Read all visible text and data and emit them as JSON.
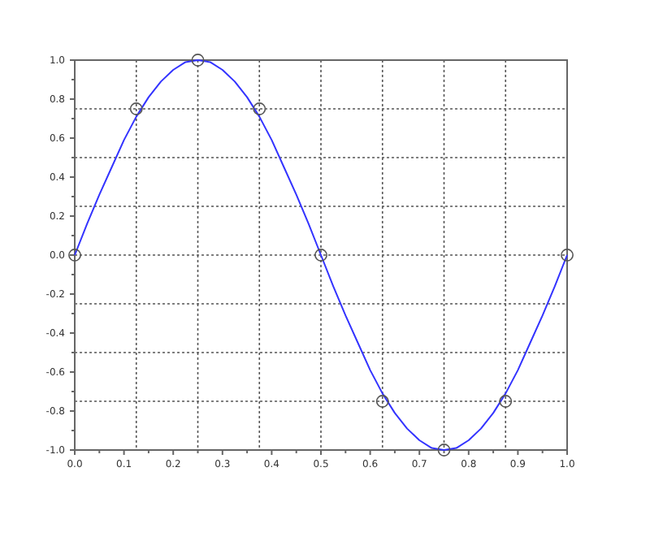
{
  "chart_data": {
    "type": "line",
    "xlim": [
      0,
      1
    ],
    "ylim": [
      -1,
      1
    ],
    "xticks": [
      {
        "value": 0,
        "label": "0.0"
      },
      {
        "value": 0.05,
        "label": null
      },
      0.1,
      {
        "value": 0.15,
        "label": null
      },
      0.2,
      {
        "value": 0.25,
        "label": null
      },
      0.3,
      {
        "value": 0.35,
        "label": null
      },
      0.4,
      {
        "value": 0.45,
        "label": null
      },
      0.5,
      {
        "value": 0.55,
        "label": null
      },
      0.6,
      {
        "value": 0.65,
        "label": null
      },
      0.7,
      {
        "value": 0.75,
        "label": null
      },
      0.8,
      {
        "value": 0.85,
        "label": null
      },
      0.9,
      {
        "value": 0.95,
        "label": null
      },
      {
        "value": 1,
        "label": "1.0"
      }
    ],
    "yticks": [
      {
        "value": -1,
        "label": "-1.0"
      },
      {
        "value": -0.9,
        "label": null
      },
      {
        "value": -0.8,
        "label": "-0.8"
      },
      {
        "value": -0.7,
        "label": null
      },
      {
        "value": -0.6,
        "label": "-0.6"
      },
      {
        "value": -0.5,
        "label": null
      },
      {
        "value": -0.4,
        "label": "-0.4"
      },
      {
        "value": -0.3,
        "label": null
      },
      {
        "value": -0.2,
        "label": "-0.2"
      },
      {
        "value": -0.1,
        "label": null
      },
      {
        "value": 0,
        "label": "0.0"
      },
      {
        "value": 0.1,
        "label": null
      },
      {
        "value": 0.2,
        "label": "0.2"
      },
      {
        "value": 0.3,
        "label": null
      },
      {
        "value": 0.4,
        "label": "0.4"
      },
      {
        "value": 0.5,
        "label": null
      },
      {
        "value": 0.6,
        "label": "0.6"
      },
      {
        "value": 0.7,
        "label": null
      },
      {
        "value": 0.8,
        "label": "0.8"
      },
      {
        "value": 0.9,
        "label": null
      },
      {
        "value": 1,
        "label": "1.0"
      }
    ],
    "ref_lines": [
      {
        "axis": "x",
        "value": 0.125,
        "line_style": "dotted",
        "color": "#555555"
      },
      {
        "axis": "x",
        "value": 0.25,
        "line_style": "dotted",
        "color": "#555555"
      },
      {
        "axis": "x",
        "value": 0.375,
        "line_style": "dotted",
        "color": "#555555"
      },
      {
        "axis": "x",
        "value": 0.5,
        "line_style": "dotted",
        "color": "#555555"
      },
      {
        "axis": "x",
        "value": 0.625,
        "line_style": "dotted",
        "color": "#555555"
      },
      {
        "axis": "x",
        "value": 0.75,
        "line_style": "dotted",
        "color": "#555555"
      },
      {
        "axis": "x",
        "value": 0.875,
        "line_style": "dotted",
        "color": "#555555"
      },
      {
        "axis": "y",
        "value": 0.75,
        "line_style": "dotted",
        "color": "#555555"
      },
      {
        "axis": "y",
        "value": 0.5,
        "line_style": "dotted",
        "color": "#555555"
      },
      {
        "axis": "y",
        "value": 0.25,
        "line_style": "dotted",
        "color": "#555555"
      },
      {
        "axis": "y",
        "value": 0,
        "line_style": "dotted",
        "color": "#555555"
      },
      {
        "axis": "y",
        "value": -0.25,
        "line_style": "dotted",
        "color": "#555555"
      },
      {
        "axis": "y",
        "value": -0.5,
        "line_style": "dotted",
        "color": "#555555"
      },
      {
        "axis": "y",
        "value": -0.75,
        "line_style": "dotted",
        "color": "#555555"
      }
    ],
    "series": [
      {
        "color": "#3333ff",
        "line_style": "solid",
        "marker": "none",
        "x": [
          0,
          0.025,
          0.05,
          0.075,
          0.1,
          0.125,
          0.15,
          0.175,
          0.2,
          0.225,
          0.25,
          0.275,
          0.3,
          0.325,
          0.35,
          0.375,
          0.4,
          0.425,
          0.45,
          0.475,
          0.5,
          0.525,
          0.55,
          0.575,
          0.6,
          0.625,
          0.65,
          0.675,
          0.7,
          0.725,
          0.75,
          0.775,
          0.8,
          0.825,
          0.85,
          0.875,
          0.9,
          0.925,
          0.95,
          0.975,
          1
        ],
        "values": [
          0,
          0.16,
          0.31,
          0.45,
          0.59,
          0.71,
          0.81,
          0.89,
          0.95,
          0.99,
          1,
          0.99,
          0.95,
          0.89,
          0.81,
          0.71,
          0.59,
          0.45,
          0.31,
          0.16,
          0,
          -0.16,
          -0.31,
          -0.45,
          -0.59,
          -0.71,
          -0.81,
          -0.89,
          -0.95,
          -0.99,
          -1,
          -0.99,
          -0.95,
          -0.89,
          -0.81,
          -0.71,
          -0.59,
          -0.45,
          -0.31,
          -0.16,
          0
        ]
      },
      {
        "type": "scatter",
        "color": "#555555",
        "marker": "circle",
        "x": [
          0,
          0.125,
          0.25,
          0.375,
          0.5,
          0.625,
          0.75,
          0.875,
          1
        ],
        "values": [
          0,
          0.75,
          1,
          0.75,
          0,
          -0.75,
          -1,
          -0.75,
          0
        ]
      }
    ]
  }
}
